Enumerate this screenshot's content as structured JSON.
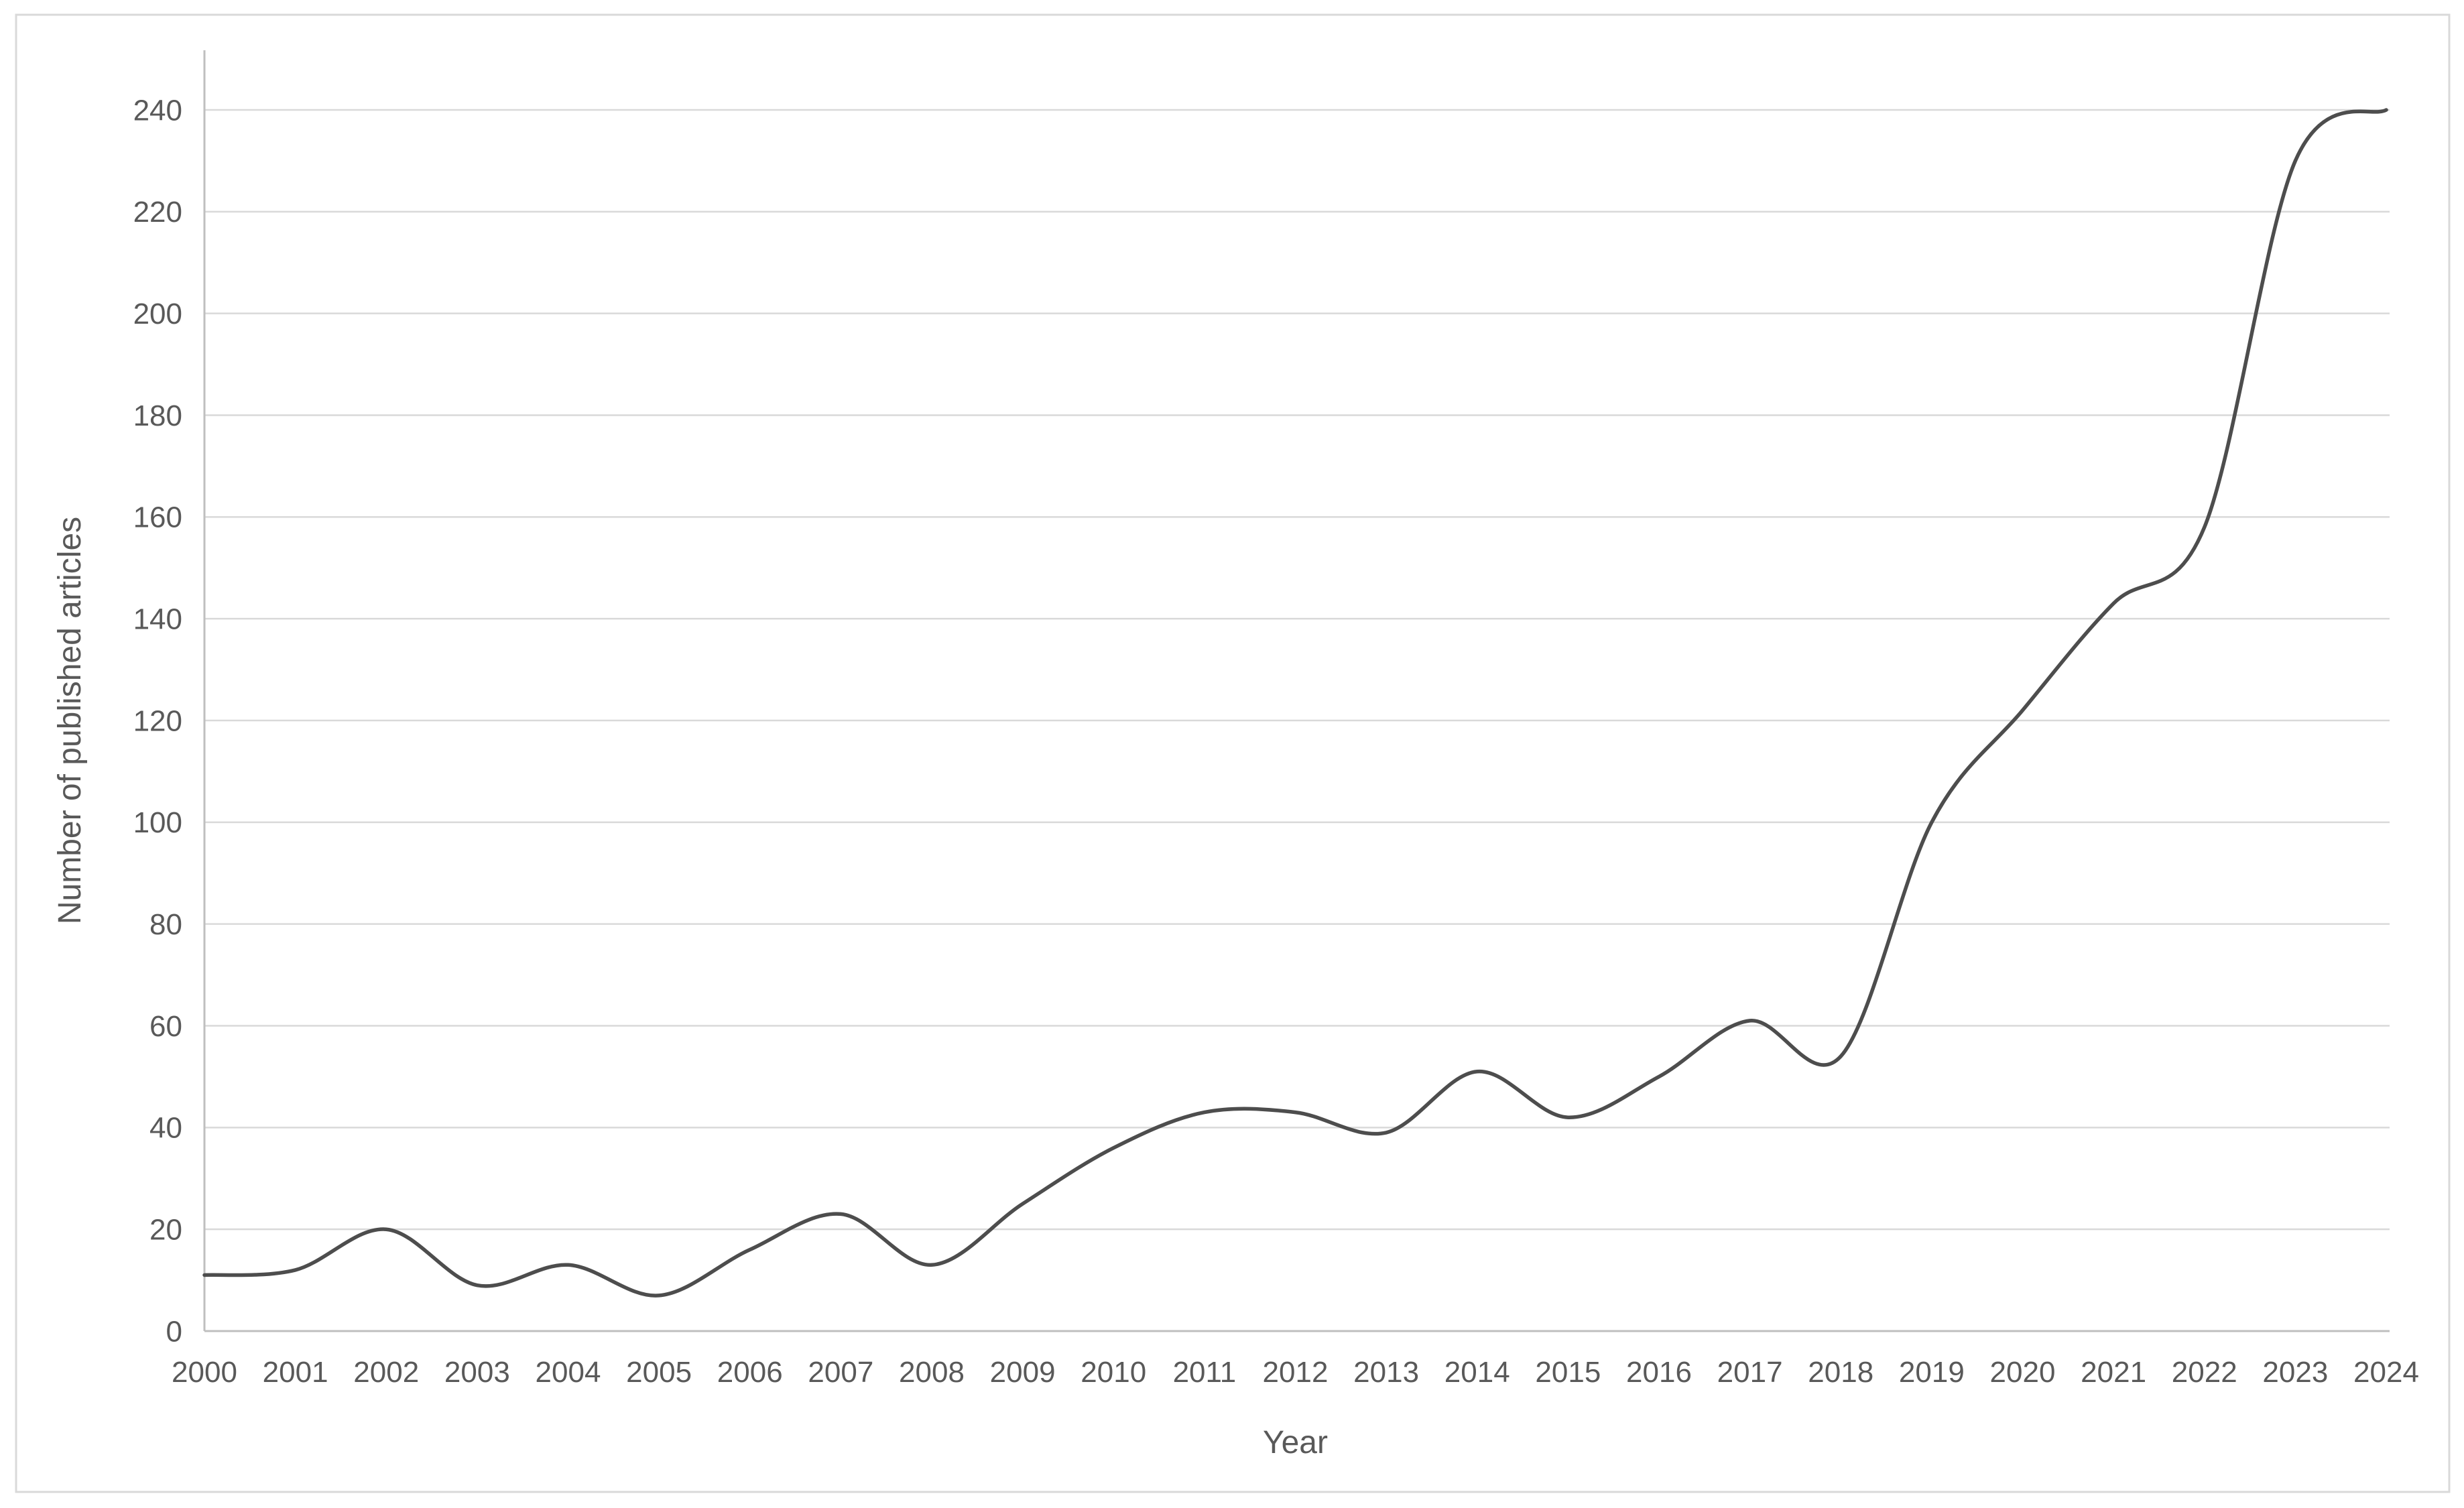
{
  "chart_data": {
    "type": "line",
    "title": "",
    "xlabel": "Year",
    "ylabel": "Number of published articles",
    "x": [
      2000,
      2001,
      2002,
      2003,
      2004,
      2005,
      2006,
      2007,
      2008,
      2009,
      2010,
      2011,
      2012,
      2013,
      2014,
      2015,
      2016,
      2017,
      2018,
      2019,
      2020,
      2021,
      2022,
      2023,
      2024
    ],
    "series": [
      {
        "name": "Number of published articles",
        "values": [
          11,
          12,
          20,
          9,
          13,
          7,
          16,
          23,
          13,
          25,
          36,
          43,
          43,
          39,
          51,
          42,
          50,
          61,
          54,
          100,
          122,
          143,
          158,
          230,
          240
        ]
      }
    ],
    "ylim": [
      0,
      240
    ],
    "ytick_step": 20,
    "grid": "horizontal-only",
    "legend": "none",
    "smooth_line": true,
    "colors": {
      "line": "#4d4d4d",
      "gridline": "#d9d9d9",
      "axis_line": "#bfbfbf",
      "text": "#595959",
      "chart_border": "#d9d9d9",
      "background": "#ffffff"
    }
  }
}
